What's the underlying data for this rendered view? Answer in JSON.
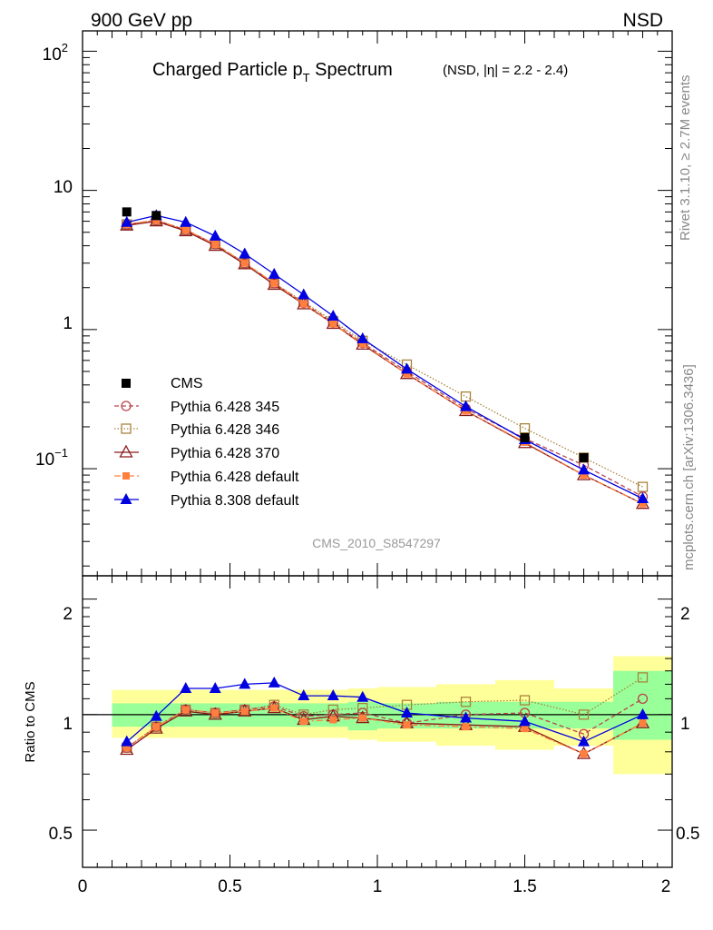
{
  "header": {
    "left": "900 GeV pp",
    "right": "NSD"
  },
  "side_labels": {
    "rivet": "Rivet 3.1.10, ≥ 2.7M events",
    "mcplots": "mcplots.cern.ch [arXiv:1306.3436]"
  },
  "analysis_id": "CMS_2010_S8547297",
  "colors": {
    "cms": "#000000",
    "p345": "#b8464d",
    "p346": "#a8843c",
    "p370": "#8b1a1a",
    "pdef": "#ff7f3f",
    "p8": "#0000e0",
    "band_yellow": "#ffff99",
    "band_green": "#99ff99"
  },
  "chart_data": [
    {
      "type": "line",
      "title": "Charged Particle p_T Spectrum",
      "title_main": "Charged Particle p",
      "title_sub": "T",
      "title_tail": " Spectrum",
      "title_extra": "(NSD, |η| = 2.2 - 2.4)",
      "xlim": [
        0,
        2
      ],
      "ylim": [
        0.017,
        140
      ],
      "yscale": "log",
      "y_tick_labels": [
        "10^{-1}",
        "1",
        "10",
        "10^{2}"
      ],
      "y_tick_text": {
        "t01": "10",
        "t01exp": "−1",
        "t1": "1",
        "t10": "10",
        "t100": "10",
        "t100exp": "2"
      },
      "legend_position": "center-left",
      "x": [
        0.15,
        0.25,
        0.35,
        0.45,
        0.55,
        0.65,
        0.75,
        0.85,
        0.95,
        1.1,
        1.3,
        1.5,
        1.7,
        1.9
      ],
      "series": [
        {
          "name": "CMS",
          "key": "cms",
          "values": [
            7.0,
            6.6,
            null,
            null,
            null,
            null,
            null,
            null,
            null,
            null,
            null,
            0.167,
            0.12,
            null
          ]
        },
        {
          "name": "Pythia 6.428 345",
          "key": "p345",
          "values": [
            5.7,
            6.1,
            5.2,
            4.1,
            3.0,
            2.15,
            1.55,
            1.12,
            0.8,
            0.5,
            0.27,
            0.165,
            0.106,
            0.063
          ]
        },
        {
          "name": "Pythia 6.428 346",
          "key": "p346",
          "values": [
            5.7,
            6.1,
            5.2,
            4.1,
            3.0,
            2.15,
            1.58,
            1.15,
            0.83,
            0.56,
            0.33,
            0.195,
            0.12,
            0.074
          ]
        },
        {
          "name": "Pythia 6.428 370",
          "key": "p370",
          "values": [
            5.6,
            6.0,
            5.1,
            4.0,
            2.95,
            2.1,
            1.52,
            1.1,
            0.78,
            0.48,
            0.26,
            0.153,
            0.09,
            0.056
          ]
        },
        {
          "name": "Pythia 6.428 default",
          "key": "pdef",
          "values": [
            5.7,
            6.1,
            5.2,
            4.1,
            3.0,
            2.15,
            1.53,
            1.1,
            0.79,
            0.48,
            0.26,
            0.155,
            0.09,
            0.056
          ]
        },
        {
          "name": "Pythia 8.308 default",
          "key": "p8",
          "values": [
            5.9,
            6.6,
            5.9,
            4.7,
            3.5,
            2.5,
            1.78,
            1.25,
            0.86,
            0.52,
            0.28,
            0.162,
            0.098,
            0.061
          ]
        }
      ]
    },
    {
      "type": "line",
      "ylabel": "Ratio to CMS",
      "xlim": [
        0,
        2
      ],
      "ylim": [
        0.4,
        2.3
      ],
      "yscale": "log",
      "x_tick_labels": [
        "0",
        "0.5",
        "1",
        "1.5",
        "2"
      ],
      "y_tick_labels": [
        "0.5",
        "1",
        "2"
      ],
      "reference_line": 1,
      "x": [
        0.15,
        0.25,
        0.35,
        0.45,
        0.55,
        0.65,
        0.75,
        0.85,
        0.95,
        1.1,
        1.3,
        1.5,
        1.7,
        1.9
      ],
      "bands": [
        {
          "x0": 0.1,
          "x1": 0.9,
          "yellow": [
            0.87,
            1.16
          ],
          "green": [
            0.93,
            1.07
          ]
        },
        {
          "x0": 0.9,
          "x1": 1.0,
          "yellow": [
            0.86,
            1.17
          ],
          "green": [
            0.91,
            1.08
          ]
        },
        {
          "x0": 1.0,
          "x1": 1.2,
          "yellow": [
            0.85,
            1.18
          ],
          "green": [
            0.92,
            1.07
          ]
        },
        {
          "x0": 1.2,
          "x1": 1.4,
          "yellow": [
            0.83,
            1.2
          ],
          "green": [
            0.92,
            1.08
          ]
        },
        {
          "x0": 1.4,
          "x1": 1.6,
          "yellow": [
            0.81,
            1.23
          ],
          "green": [
            0.92,
            1.08
          ]
        },
        {
          "x0": 1.6,
          "x1": 1.8,
          "yellow": [
            0.83,
            1.17
          ],
          "green": [
            0.92,
            1.08
          ]
        },
        {
          "x0": 1.8,
          "x1": 2.0,
          "yellow": [
            0.7,
            1.42
          ],
          "green": [
            0.86,
            1.3
          ]
        }
      ],
      "series": [
        {
          "name": "Pythia 6.428 345",
          "key": "p345",
          "values": [
            0.82,
            0.93,
            1.03,
            1.01,
            1.03,
            1.05,
            0.99,
            1.0,
            1.01,
            0.95,
            1.0,
            1.01,
            0.89,
            1.1
          ]
        },
        {
          "name": "Pythia 6.428 346",
          "key": "p346",
          "values": [
            0.82,
            0.93,
            1.03,
            1.01,
            1.03,
            1.06,
            1.0,
            1.03,
            1.04,
            1.06,
            1.08,
            1.09,
            1.0,
            1.25
          ]
        },
        {
          "name": "Pythia 6.428 370",
          "key": "p370",
          "values": [
            0.81,
            0.92,
            1.02,
            1.0,
            1.02,
            1.04,
            0.97,
            0.99,
            0.98,
            0.95,
            0.94,
            0.93,
            0.79,
            0.95
          ]
        },
        {
          "name": "Pythia 6.428 default",
          "key": "pdef",
          "values": [
            0.82,
            0.93,
            1.03,
            1.01,
            1.02,
            1.04,
            0.96,
            0.97,
            0.98,
            0.94,
            0.93,
            0.92,
            0.79,
            0.95
          ]
        },
        {
          "name": "Pythia 8.308 default",
          "key": "p8",
          "values": [
            0.85,
            0.99,
            1.17,
            1.17,
            1.2,
            1.21,
            1.12,
            1.12,
            1.11,
            1.01,
            0.98,
            0.96,
            0.85,
            1.0
          ]
        }
      ]
    }
  ]
}
